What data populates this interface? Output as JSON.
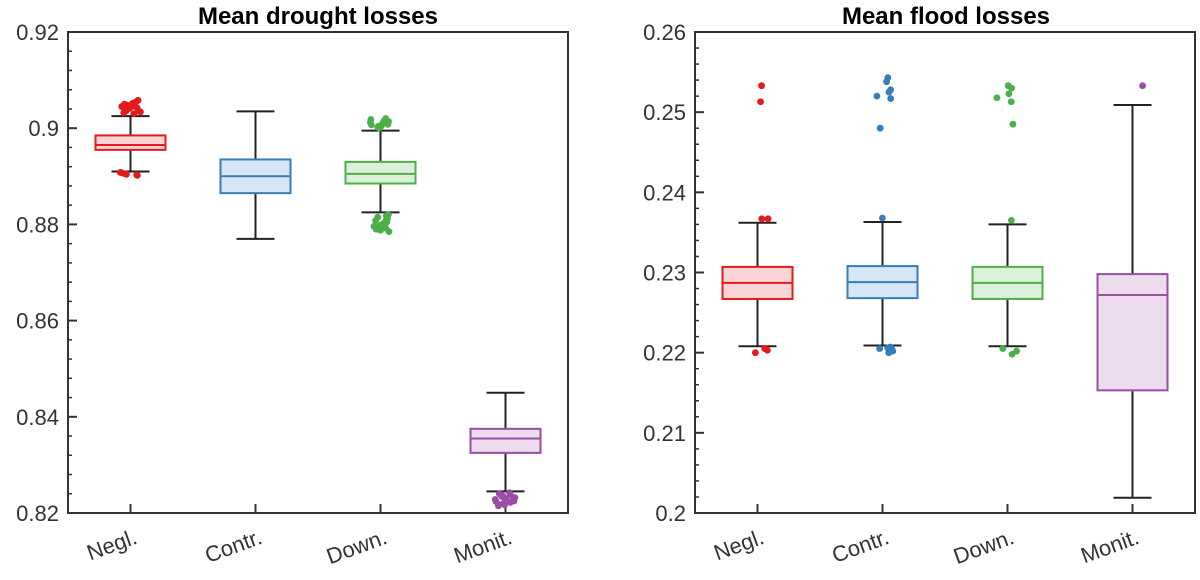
{
  "chart_data": [
    {
      "type": "box",
      "title": "Mean drought losses",
      "xlabel": "",
      "ylabel": "",
      "ylim": [
        0.82,
        0.92
      ],
      "yticks": [
        "0.82",
        "0.84",
        "0.86",
        "0.88",
        "0.9",
        "0.92"
      ],
      "yminor_step": 0.004,
      "categories": [
        "Negl.",
        "Contr.",
        "Down.",
        "Monit."
      ],
      "boxes": [
        {
          "name": "Negl.",
          "color": "#e41a1c",
          "fill": "#fbd5d5",
          "whisker_low": 0.891,
          "q1": 0.8955,
          "median": 0.8965,
          "q3": 0.8985,
          "whisker_high": 0.9025,
          "outliers": [
            0.903,
            0.9035,
            0.904,
            0.9045,
            0.905,
            0.9055,
            0.9032,
            0.9038,
            0.9042,
            0.9048,
            0.9052,
            0.9058,
            0.9034,
            0.9044,
            0.9036,
            0.9046,
            0.9041,
            0.9051,
            0.8905,
            0.8902,
            0.8907,
            0.8903,
            0.8908,
            0.8904
          ]
        },
        {
          "name": "Contr.",
          "color": "#377eb8",
          "fill": "#d6e6f4",
          "whisker_low": 0.877,
          "q1": 0.8865,
          "median": 0.89,
          "q3": 0.8935,
          "whisker_high": 0.9035,
          "outliers": []
        },
        {
          "name": "Down.",
          "color": "#4daf4a",
          "fill": "#dcf0d9",
          "whisker_low": 0.8825,
          "q1": 0.8885,
          "median": 0.8905,
          "q3": 0.893,
          "whisker_high": 0.8995,
          "outliers": [
            0.9,
            0.9005,
            0.901,
            0.9015,
            0.902,
            0.9002,
            0.9008,
            0.9012,
            0.9018,
            0.9004,
            0.9014,
            0.9007,
            0.9016,
            0.9011,
            0.882,
            0.8815,
            0.881,
            0.8805,
            0.88,
            0.8795,
            0.879,
            0.8785,
            0.8818,
            0.8812,
            0.8802,
            0.8798,
            0.8792,
            0.8808,
            0.8796,
            0.8788
          ]
        },
        {
          "name": "Monit.",
          "color": "#984ea3",
          "fill": "#ecdcee",
          "whisker_low": 0.8245,
          "q1": 0.8325,
          "median": 0.8355,
          "q3": 0.8375,
          "whisker_high": 0.845,
          "outliers": [
            0.824,
            0.8235,
            0.823,
            0.8225,
            0.822,
            0.8215,
            0.8242,
            0.8238,
            0.8232,
            0.8228,
            0.8222,
            0.8218,
            0.8236,
            0.8226,
            0.8234,
            0.8224,
            0.8217,
            0.8229
          ]
        }
      ]
    },
    {
      "type": "box",
      "title": "Mean flood losses",
      "xlabel": "",
      "ylabel": "",
      "ylim": [
        0.2,
        0.26
      ],
      "yticks": [
        "0.2",
        "0.21",
        "0.22",
        "0.23",
        "0.24",
        "0.25",
        "0.26"
      ],
      "yminor_step": 0.002,
      "categories": [
        "Negl.",
        "Contr.",
        "Down.",
        "Monit."
      ],
      "boxes": [
        {
          "name": "Negl.",
          "color": "#e41a1c",
          "fill": "#fbd5d5",
          "whisker_low": 0.2208,
          "q1": 0.2267,
          "median": 0.2287,
          "q3": 0.2307,
          "whisker_high": 0.2362,
          "outliers": [
            0.2533,
            0.2513,
            0.2367,
            0.2367,
            0.2205,
            0.22,
            0.2203
          ]
        },
        {
          "name": "Contr.",
          "color": "#377eb8",
          "fill": "#d6e6f4",
          "whisker_low": 0.2209,
          "q1": 0.2268,
          "median": 0.2288,
          "q3": 0.2308,
          "whisker_high": 0.2363,
          "outliers": [
            0.2543,
            0.2538,
            0.2528,
            0.2525,
            0.252,
            0.2517,
            0.248,
            0.2368,
            0.2205,
            0.2202,
            0.2207,
            0.22,
            0.2204,
            0.2206
          ]
        },
        {
          "name": "Down.",
          "color": "#4daf4a",
          "fill": "#dcf0d9",
          "whisker_low": 0.2208,
          "q1": 0.2267,
          "median": 0.2287,
          "q3": 0.2307,
          "whisker_high": 0.236,
          "outliers": [
            0.2533,
            0.253,
            0.2523,
            0.2518,
            0.2513,
            0.2485,
            0.2365,
            0.2205,
            0.2198,
            0.2202
          ]
        },
        {
          "name": "Monit.",
          "color": "#984ea3",
          "fill": "#ecdcee",
          "whisker_low": 0.2019,
          "q1": 0.2153,
          "median": 0.2272,
          "q3": 0.2298,
          "whisker_high": 0.2509,
          "outliers": [
            0.2533
          ]
        }
      ]
    }
  ]
}
